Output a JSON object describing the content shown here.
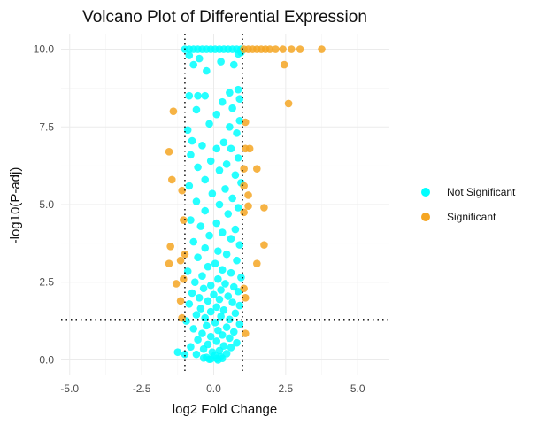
{
  "chart_data": {
    "type": "scatter",
    "title": "Volcano Plot of Differential Expression",
    "xlabel": "log2 Fold Change",
    "ylabel": "-log10(P-adj)",
    "xlim": [
      -5.3,
      6.1
    ],
    "ylim": [
      -0.5,
      10.5
    ],
    "x_ticks": [
      -5.0,
      -2.5,
      0.0,
      2.5,
      5.0
    ],
    "x_tick_labels": [
      "-5.0",
      "-2.5",
      "0.0",
      "2.5",
      "5.0"
    ],
    "y_ticks": [
      0.0,
      2.5,
      5.0,
      7.5,
      10.0
    ],
    "y_tick_labels": [
      "0.0",
      "2.5",
      "5.0",
      "7.5",
      "10.0"
    ],
    "grid": true,
    "legend_position": "right",
    "thresholds": {
      "vertical": [
        -1,
        1
      ],
      "horizontal": [
        1.3
      ]
    },
    "series": [
      {
        "name": "Not Significant",
        "color": "#00FFFF",
        "points": [
          [
            -1.0,
            10.0
          ],
          [
            -0.85,
            10.0
          ],
          [
            -0.7,
            10.0
          ],
          [
            -0.55,
            10.0
          ],
          [
            -0.4,
            10.0
          ],
          [
            -0.25,
            10.0
          ],
          [
            -0.1,
            10.0
          ],
          [
            0.05,
            10.0
          ],
          [
            0.2,
            10.0
          ],
          [
            0.35,
            10.0
          ],
          [
            0.5,
            10.0
          ],
          [
            0.65,
            10.0
          ],
          [
            0.8,
            10.0
          ],
          [
            0.95,
            10.0
          ],
          [
            0.95,
            9.9
          ],
          [
            0.85,
            9.85
          ],
          [
            -0.85,
            9.8
          ],
          [
            -0.5,
            9.7
          ],
          [
            0.25,
            9.6
          ],
          [
            0.7,
            9.5
          ],
          [
            -0.7,
            9.5
          ],
          [
            -0.25,
            9.3
          ],
          [
            0.85,
            8.7
          ],
          [
            0.55,
            8.6
          ],
          [
            -0.55,
            8.5
          ],
          [
            -0.3,
            8.5
          ],
          [
            -0.85,
            8.5
          ],
          [
            0.9,
            8.4
          ],
          [
            0.3,
            8.3
          ],
          [
            0.65,
            8.1
          ],
          [
            -0.6,
            8.05
          ],
          [
            0.1,
            7.9
          ],
          [
            0.9,
            7.7
          ],
          [
            -0.15,
            7.6
          ],
          [
            0.55,
            7.5
          ],
          [
            -0.9,
            7.4
          ],
          [
            0.8,
            7.3
          ],
          [
            -0.75,
            7.05
          ],
          [
            0.35,
            7.0
          ],
          [
            -0.4,
            6.9
          ],
          [
            0.6,
            6.8
          ],
          [
            0.1,
            6.8
          ],
          [
            -0.8,
            6.6
          ],
          [
            0.85,
            6.5
          ],
          [
            -0.1,
            6.4
          ],
          [
            0.45,
            6.3
          ],
          [
            -0.55,
            6.2
          ],
          [
            0.2,
            6.1
          ],
          [
            0.75,
            5.95
          ],
          [
            -0.3,
            5.8
          ],
          [
            0.95,
            5.7
          ],
          [
            -0.85,
            5.6
          ],
          [
            0.4,
            5.5
          ],
          [
            -0.05,
            5.35
          ],
          [
            0.65,
            5.2
          ],
          [
            -0.6,
            5.1
          ],
          [
            0.2,
            5.0
          ],
          [
            0.85,
            4.9
          ],
          [
            -0.3,
            4.8
          ],
          [
            0.5,
            4.7
          ],
          [
            -0.8,
            4.5
          ],
          [
            0.1,
            4.4
          ],
          [
            -0.45,
            4.3
          ],
          [
            0.75,
            4.2
          ],
          [
            0.3,
            4.1
          ],
          [
            -0.15,
            4.0
          ],
          [
            0.6,
            3.9
          ],
          [
            -0.7,
            3.8
          ],
          [
            0.9,
            3.7
          ],
          [
            -0.3,
            3.6
          ],
          [
            0.15,
            3.5
          ],
          [
            0.45,
            3.4
          ],
          [
            -0.55,
            3.3
          ],
          [
            0.8,
            3.2
          ],
          [
            0.05,
            3.1
          ],
          [
            -0.2,
            3.0
          ],
          [
            0.3,
            2.9
          ],
          [
            -0.9,
            2.85
          ],
          [
            0.6,
            2.8
          ],
          [
            -0.4,
            2.7
          ],
          [
            0.95,
            2.65
          ],
          [
            0.15,
            2.6
          ],
          [
            -0.65,
            2.5
          ],
          [
            0.4,
            2.45
          ],
          [
            -0.1,
            2.4
          ],
          [
            0.7,
            2.35
          ],
          [
            -0.35,
            2.3
          ],
          [
            0.25,
            2.25
          ],
          [
            0.85,
            2.2
          ],
          [
            -0.75,
            2.15
          ],
          [
            0.0,
            2.1
          ],
          [
            0.5,
            2.05
          ],
          [
            -0.5,
            2.0
          ],
          [
            0.2,
            1.95
          ],
          [
            -0.2,
            1.9
          ],
          [
            0.65,
            1.85
          ],
          [
            -0.85,
            1.8
          ],
          [
            0.9,
            1.75
          ],
          [
            0.1,
            1.7
          ],
          [
            -0.45,
            1.65
          ],
          [
            0.35,
            1.6
          ],
          [
            -0.1,
            1.55
          ],
          [
            0.75,
            1.5
          ],
          [
            -0.6,
            1.45
          ],
          [
            0.25,
            1.4
          ],
          [
            -0.3,
            1.35
          ],
          [
            0.55,
            1.3
          ],
          [
            -0.95,
            1.25
          ],
          [
            0.05,
            1.2
          ],
          [
            0.9,
            1.15
          ],
          [
            -0.25,
            1.1
          ],
          [
            0.45,
            1.05
          ],
          [
            -0.7,
            1.0
          ],
          [
            0.15,
            0.95
          ],
          [
            0.7,
            0.9
          ],
          [
            -0.4,
            0.85
          ],
          [
            0.3,
            0.8
          ],
          [
            -0.1,
            0.75
          ],
          [
            0.55,
            0.7
          ],
          [
            -0.55,
            0.65
          ],
          [
            0.1,
            0.6
          ],
          [
            0.8,
            0.55
          ],
          [
            -0.2,
            0.5
          ],
          [
            0.35,
            0.45
          ],
          [
            -0.8,
            0.42
          ],
          [
            0.6,
            0.4
          ],
          [
            -0.35,
            0.35
          ],
          [
            0.2,
            0.3
          ],
          [
            -0.05,
            0.25
          ],
          [
            0.45,
            0.2
          ],
          [
            -0.6,
            0.18
          ],
          [
            0.05,
            0.15
          ],
          [
            0.25,
            0.1
          ],
          [
            -0.25,
            0.08
          ],
          [
            0.1,
            0.05
          ],
          [
            -0.1,
            0.03
          ],
          [
            0.15,
            0.0
          ],
          [
            -0.15,
            0.02
          ],
          [
            0.3,
            0.05
          ],
          [
            -0.35,
            0.06
          ],
          [
            -1.25,
            0.25
          ],
          [
            -1.0,
            0.18
          ]
        ]
      },
      {
        "name": "Significant",
        "color": "#F5A623",
        "points": [
          [
            1.05,
            10.0
          ],
          [
            1.2,
            10.0
          ],
          [
            1.35,
            10.0
          ],
          [
            1.5,
            10.0
          ],
          [
            1.65,
            10.0
          ],
          [
            1.8,
            10.0
          ],
          [
            1.95,
            10.0
          ],
          [
            2.15,
            10.0
          ],
          [
            2.4,
            10.0
          ],
          [
            2.7,
            10.0
          ],
          [
            3.0,
            10.0
          ],
          [
            3.75,
            10.0
          ],
          [
            2.45,
            9.5
          ],
          [
            2.6,
            8.25
          ],
          [
            1.1,
            7.65
          ],
          [
            1.1,
            6.8
          ],
          [
            1.25,
            6.8
          ],
          [
            1.05,
            6.15
          ],
          [
            1.5,
            6.15
          ],
          [
            1.05,
            5.6
          ],
          [
            1.2,
            5.3
          ],
          [
            1.2,
            4.95
          ],
          [
            1.75,
            4.9
          ],
          [
            1.05,
            4.75
          ],
          [
            1.75,
            3.7
          ],
          [
            1.5,
            3.1
          ],
          [
            1.05,
            2.3
          ],
          [
            1.1,
            2.0
          ],
          [
            1.1,
            0.85
          ],
          [
            -1.4,
            8.0
          ],
          [
            -1.55,
            6.7
          ],
          [
            -1.45,
            5.8
          ],
          [
            -1.1,
            5.45
          ],
          [
            -1.05,
            4.5
          ],
          [
            -1.5,
            3.65
          ],
          [
            -1.0,
            3.4
          ],
          [
            -1.55,
            3.1
          ],
          [
            -1.15,
            3.2
          ],
          [
            -1.3,
            2.45
          ],
          [
            -1.05,
            2.6
          ],
          [
            -1.15,
            1.9
          ],
          [
            -1.1,
            1.35
          ]
        ]
      }
    ]
  }
}
